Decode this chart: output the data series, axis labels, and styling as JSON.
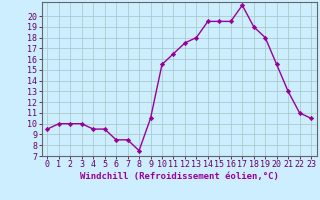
{
  "x": [
    0,
    1,
    2,
    3,
    4,
    5,
    6,
    7,
    8,
    9,
    10,
    11,
    12,
    13,
    14,
    15,
    16,
    17,
    18,
    19,
    20,
    21,
    22,
    23
  ],
  "y": [
    9.5,
    10.0,
    10.0,
    10.0,
    9.5,
    9.5,
    8.5,
    8.5,
    7.5,
    10.5,
    15.5,
    16.5,
    17.5,
    18.0,
    19.5,
    19.5,
    19.5,
    21.0,
    19.0,
    18.0,
    15.5,
    13.0,
    11.0,
    10.5
  ],
  "line_color": "#990099",
  "marker": "D",
  "marker_size": 2.2,
  "bg_color": "#cceeff",
  "grid_color": "#aacccc",
  "xlabel": "Windchill (Refroidissement éolien,°C)",
  "ylim": [
    7,
    21
  ],
  "xlim": [
    -0.5,
    23.5
  ],
  "yticks": [
    7,
    8,
    9,
    10,
    11,
    12,
    13,
    14,
    15,
    16,
    17,
    18,
    19,
    20
  ],
  "xticks": [
    0,
    1,
    2,
    3,
    4,
    5,
    6,
    7,
    8,
    9,
    10,
    11,
    12,
    13,
    14,
    15,
    16,
    17,
    18,
    19,
    20,
    21,
    22,
    23
  ],
  "xlabel_fontsize": 6.5,
  "tick_fontsize": 6.0,
  "line_width": 1.0
}
